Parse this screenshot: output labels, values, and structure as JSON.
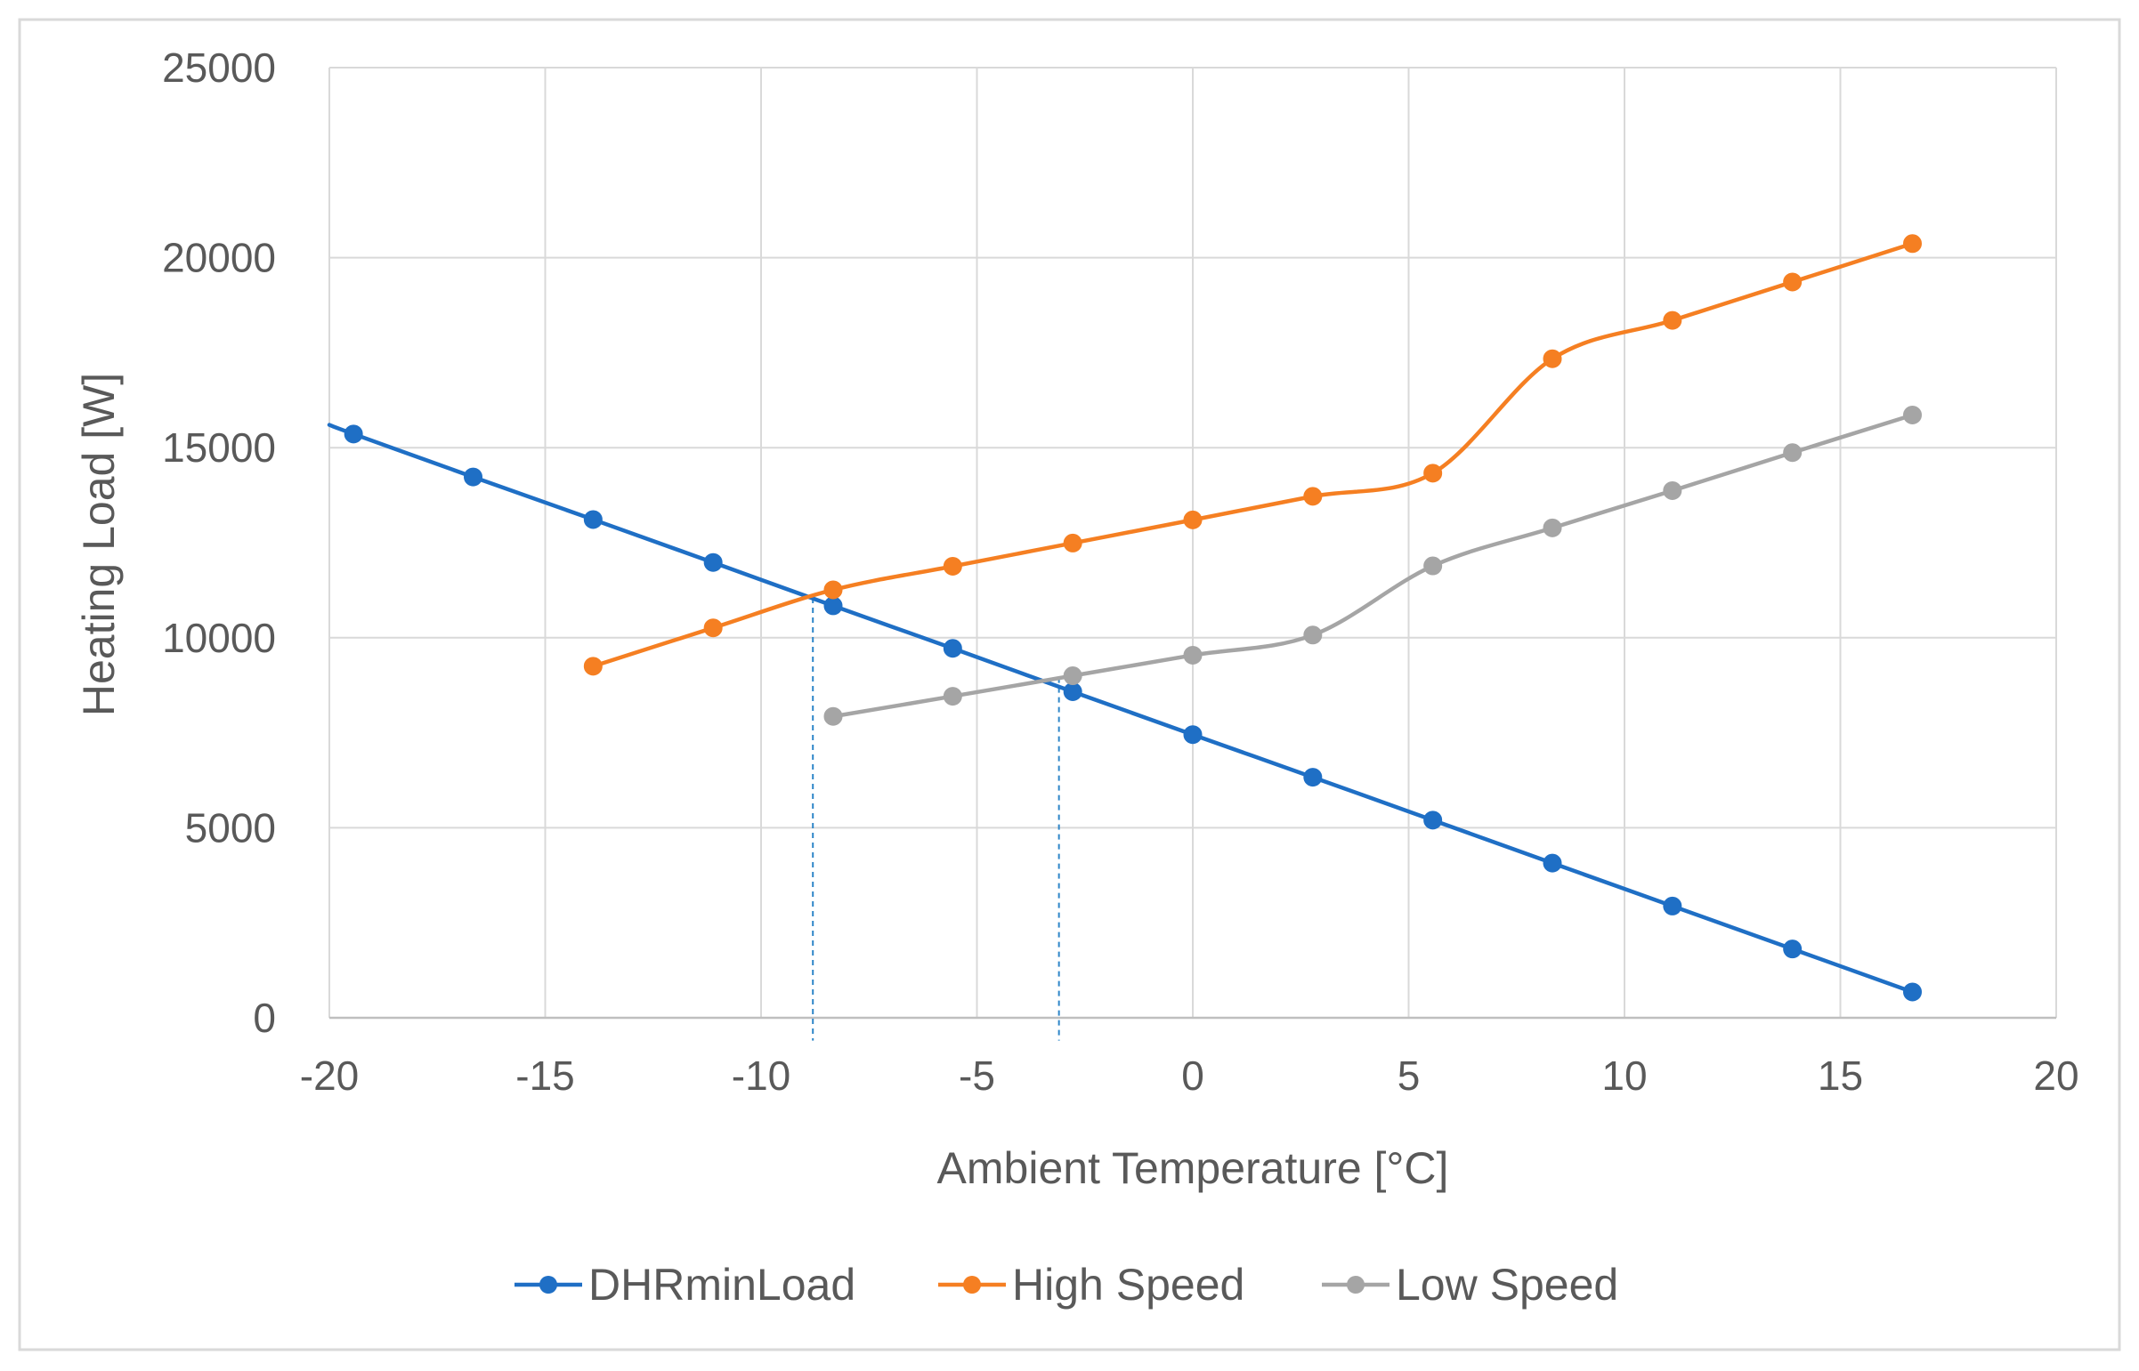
{
  "chart_data": {
    "type": "line",
    "title": "",
    "xlabel": "Ambient Temperature [°C]",
    "ylabel": "Heating Load [W]",
    "xlim": [
      -20,
      20
    ],
    "ylim": [
      0,
      25000
    ],
    "x_ticks": [
      -20,
      -15,
      -10,
      -5,
      0,
      5,
      10,
      15,
      20
    ],
    "y_ticks": [
      0,
      5000,
      10000,
      15000,
      20000,
      25000
    ],
    "x_tick_labels": [
      "-20",
      "-15",
      "-10",
      "-5",
      "0",
      "5",
      "10",
      "15",
      "20"
    ],
    "y_tick_labels": [
      "0",
      "5000",
      "10000",
      "15000",
      "20000",
      "25000"
    ],
    "grid": true,
    "legend_position": "bottom",
    "series": [
      {
        "name": "DHRminLoad",
        "color": "#1f6fc5",
        "line_x": [
          -20,
          -19.44,
          -16.67,
          -13.89,
          -11.11,
          -8.33,
          -5.56,
          -2.78,
          0,
          2.78,
          5.56,
          8.33,
          11.11,
          13.89,
          16.67
        ],
        "line_y": [
          15600,
          15360,
          14230,
          13110,
          11980,
          10840,
          9720,
          8580,
          7450,
          6330,
          5200,
          4070,
          2940,
          1810,
          680
        ],
        "marker_x": [
          -19.44,
          -16.67,
          -13.89,
          -11.11,
          -8.33,
          -5.56,
          -2.78,
          0,
          2.78,
          5.56,
          8.33,
          11.11,
          13.89,
          16.67
        ],
        "marker_y": [
          15360,
          14230,
          13110,
          11980,
          10840,
          9720,
          8580,
          7450,
          6330,
          5200,
          4070,
          2940,
          1810,
          680
        ]
      },
      {
        "name": "High Speed",
        "color": "#f57f22",
        "line_x": [
          -13.89,
          -11.11,
          -8.33,
          -5.56,
          -2.78,
          0,
          2.78,
          5.56,
          8.33,
          11.11,
          13.89,
          16.67
        ],
        "line_y": [
          9250,
          10260,
          11260,
          11880,
          12490,
          13100,
          13720,
          14330,
          17340,
          18350,
          19360,
          20370
        ],
        "marker_x": [
          -13.89,
          -11.11,
          -8.33,
          -5.56,
          -2.78,
          0,
          2.78,
          5.56,
          8.33,
          11.11,
          13.89,
          16.67
        ],
        "marker_y": [
          9250,
          10260,
          11260,
          11880,
          12490,
          13100,
          13720,
          14330,
          17340,
          18350,
          19360,
          20370
        ]
      },
      {
        "name": "Low Speed",
        "color": "#a5a5a5",
        "line_x": [
          -8.33,
          -5.56,
          -2.78,
          0,
          2.78,
          5.56,
          8.33,
          11.11,
          13.89,
          16.67
        ],
        "line_y": [
          7930,
          8460,
          9000,
          9540,
          10070,
          11890,
          12890,
          13870,
          14870,
          15860
        ],
        "marker_x": [
          -8.33,
          -5.56,
          -2.78,
          0,
          2.78,
          5.56,
          8.33,
          11.11,
          13.89,
          16.67
        ],
        "marker_y": [
          7930,
          8460,
          9000,
          9540,
          10070,
          11890,
          12890,
          13870,
          14870,
          15860
        ]
      }
    ],
    "annotations": [
      {
        "type": "vertical-dashed-line",
        "x": -8.8,
        "y_from": -600,
        "y_to": 11050,
        "color": "#2e86c8"
      },
      {
        "type": "vertical-dashed-line",
        "x": -3.1,
        "y_from": -600,
        "y_to": 8950,
        "color": "#2e86c8"
      }
    ],
    "colors": {
      "background": "#ffffff",
      "grid": "#d9d9d9",
      "axis": "#bfbfbf",
      "frame": "#d9d9d9",
      "text": "#595959"
    }
  }
}
